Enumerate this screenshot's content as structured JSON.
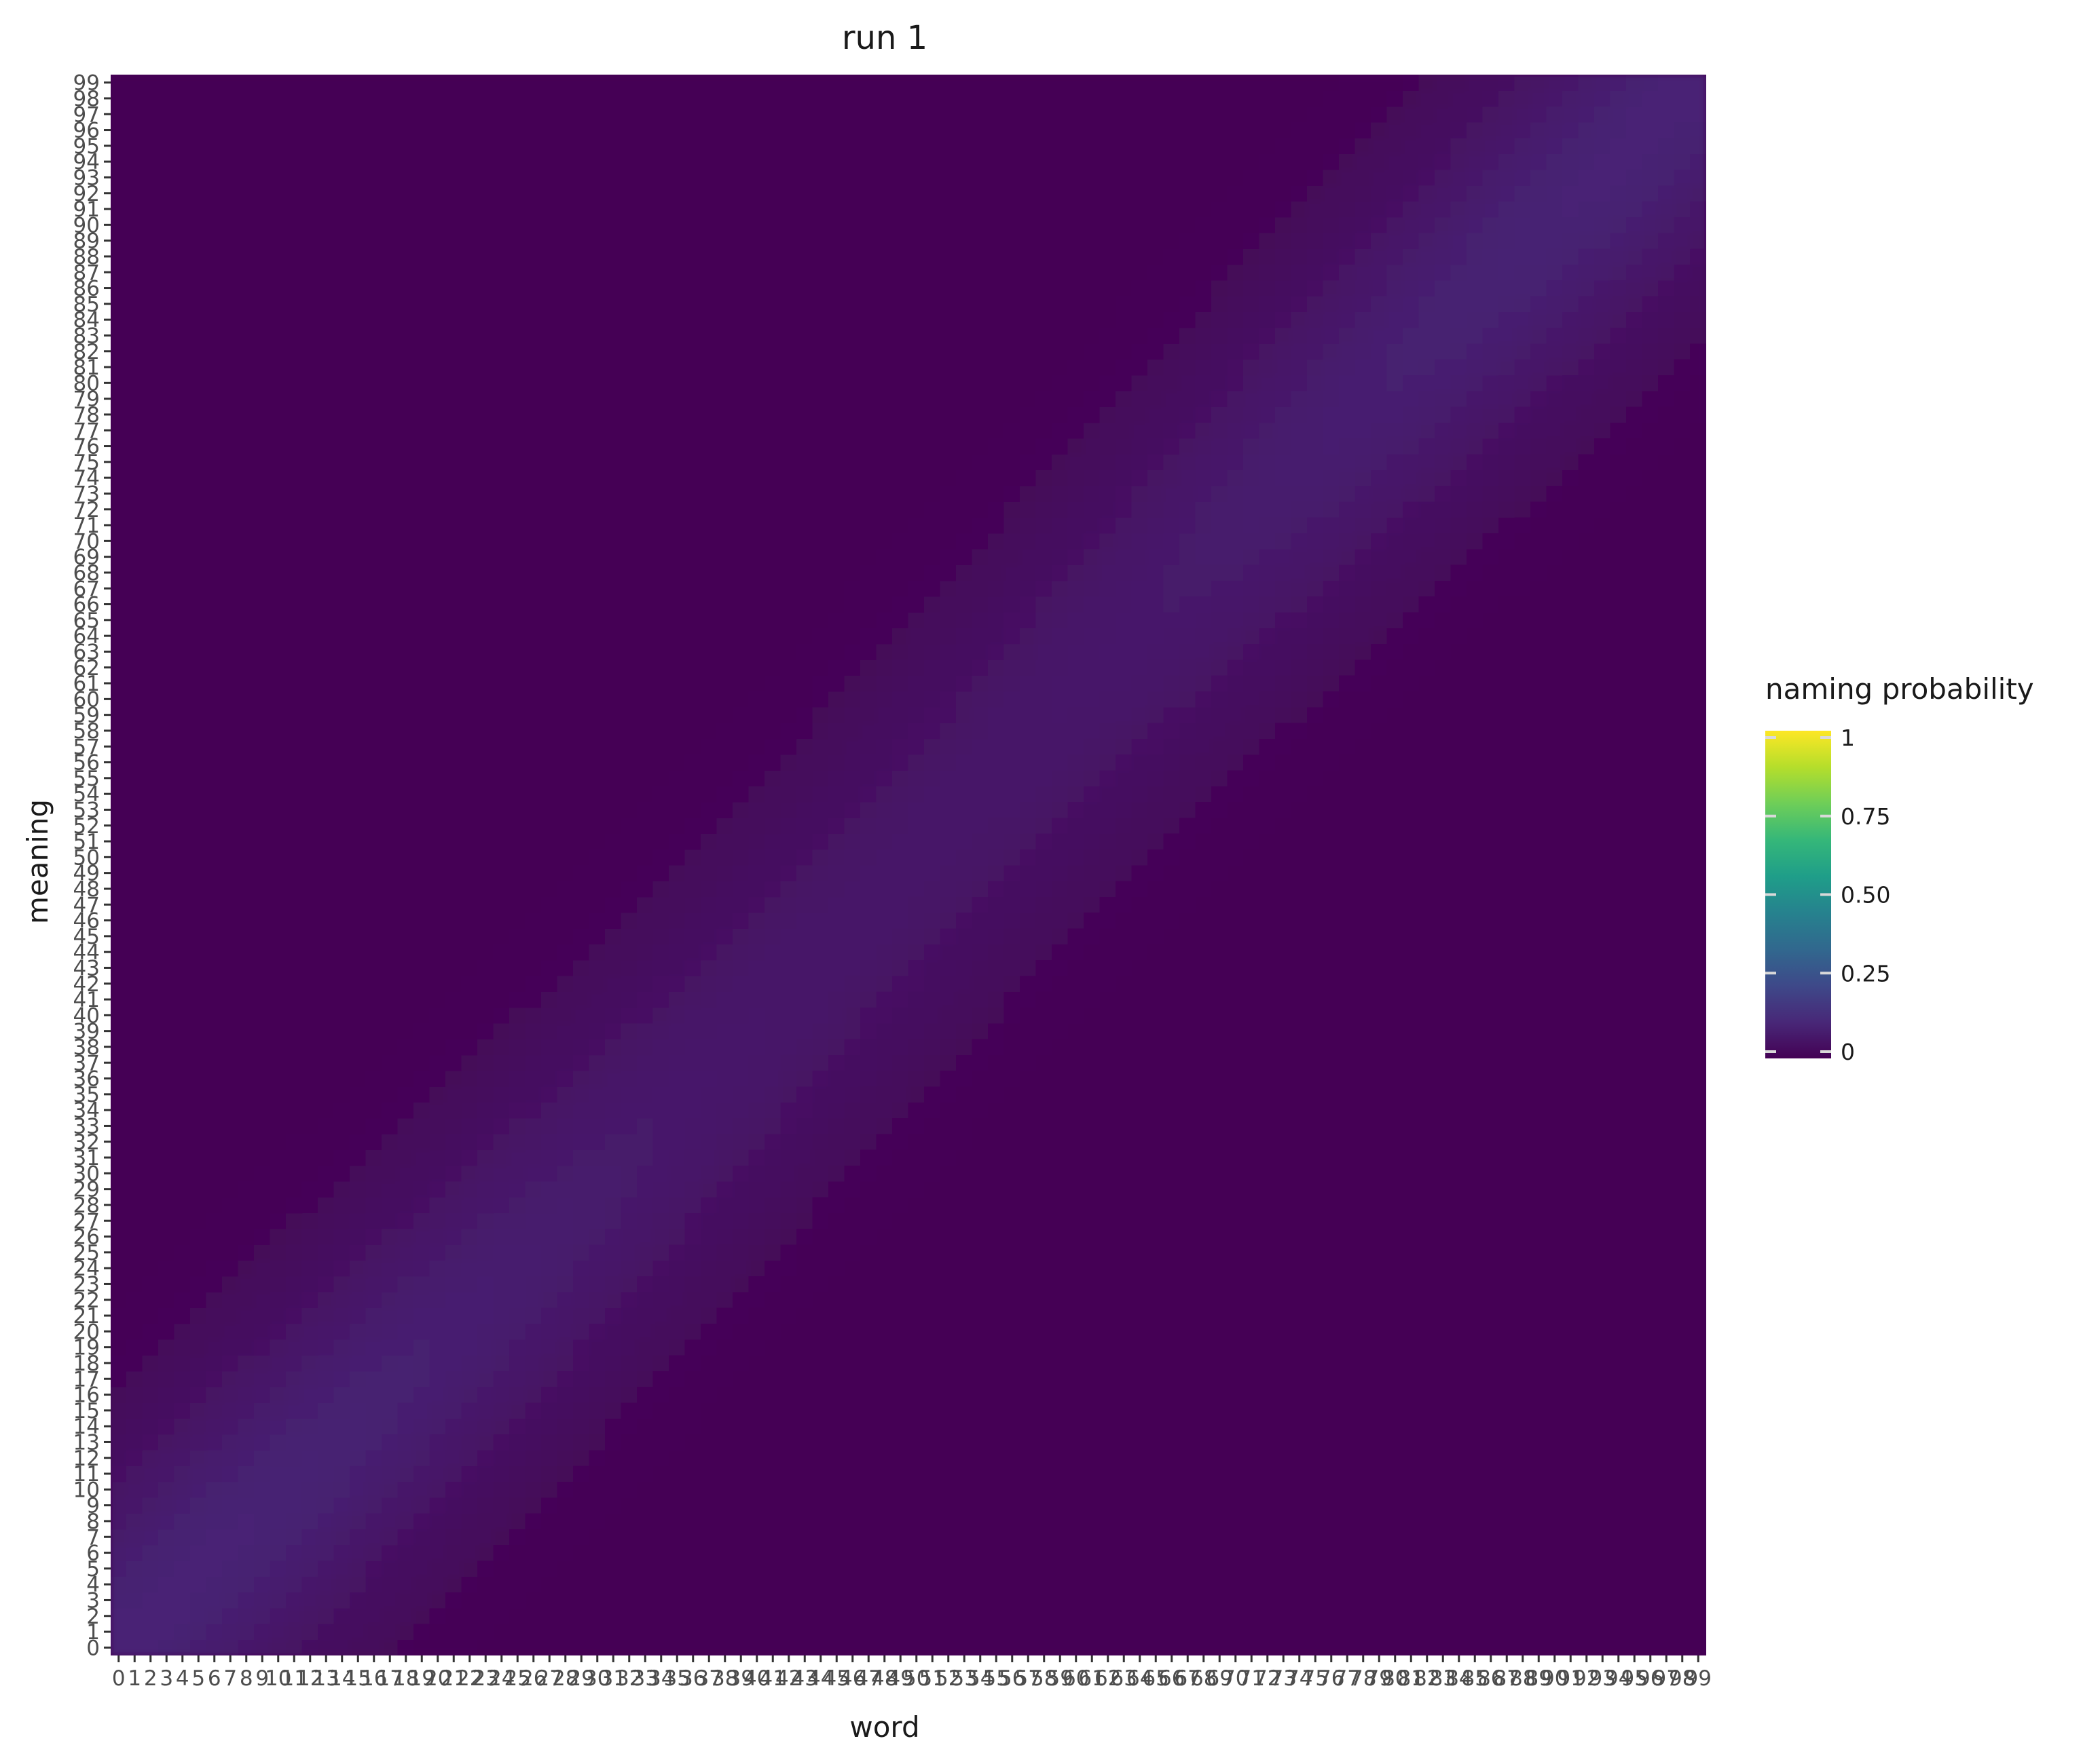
{
  "chart_data": {
    "type": "heatmap",
    "title": "run 1",
    "xlabel": "word",
    "ylabel": "meaning",
    "x_categories": [
      "0",
      "1",
      "2",
      "3",
      "4",
      "5",
      "6",
      "7",
      "8",
      "9",
      "10",
      "11",
      "12",
      "13",
      "14",
      "15",
      "16",
      "17",
      "18",
      "19",
      "20",
      "21",
      "22",
      "23",
      "24",
      "25",
      "26",
      "27",
      "28",
      "29",
      "30",
      "31",
      "32",
      "33",
      "34",
      "35",
      "36",
      "37",
      "38",
      "39",
      "40",
      "41",
      "42",
      "43",
      "44",
      "45",
      "46",
      "47",
      "48",
      "49",
      "50",
      "51",
      "52",
      "53",
      "54",
      "55",
      "56",
      "57",
      "58",
      "59",
      "60",
      "61",
      "62",
      "63",
      "64",
      "65",
      "66",
      "67",
      "68",
      "69",
      "70",
      "71",
      "72",
      "73",
      "74",
      "75",
      "76",
      "77",
      "78",
      "79",
      "80",
      "81",
      "82",
      "83",
      "84",
      "85",
      "86",
      "87",
      "88",
      "89",
      "90",
      "91",
      "92",
      "93",
      "94",
      "95",
      "96",
      "97",
      "98",
      "99"
    ],
    "y_categories": [
      "0",
      "1",
      "2",
      "3",
      "4",
      "5",
      "6",
      "7",
      "8",
      "9",
      "10",
      "11",
      "12",
      "13",
      "14",
      "15",
      "16",
      "17",
      "18",
      "19",
      "20",
      "21",
      "22",
      "23",
      "24",
      "25",
      "26",
      "27",
      "28",
      "29",
      "30",
      "31",
      "32",
      "33",
      "34",
      "35",
      "36",
      "37",
      "38",
      "39",
      "40",
      "41",
      "42",
      "43",
      "44",
      "45",
      "46",
      "47",
      "48",
      "49",
      "50",
      "51",
      "52",
      "53",
      "54",
      "55",
      "56",
      "57",
      "58",
      "59",
      "60",
      "61",
      "62",
      "63",
      "64",
      "65",
      "66",
      "67",
      "68",
      "69",
      "70",
      "71",
      "72",
      "73",
      "74",
      "75",
      "76",
      "77",
      "78",
      "79",
      "80",
      "81",
      "82",
      "83",
      "84",
      "85",
      "86",
      "87",
      "88",
      "89",
      "90",
      "91",
      "92",
      "93",
      "94",
      "95",
      "96",
      "97",
      "98",
      "99"
    ],
    "value_model": {
      "pattern": "diagonal band: each meaning is named mostly by nearby words",
      "peak_min": 0.06,
      "peak_max": 0.1,
      "bandwidth": 9
    },
    "colorbar": {
      "title": "naming probability",
      "range": [
        0,
        1
      ],
      "ticks": [
        0,
        0.25,
        0.5,
        0.75,
        1
      ],
      "tick_labels": [
        "0",
        "0.25",
        "0.50",
        "0.75",
        "1"
      ],
      "colormap": "viridis",
      "stops": [
        "#440154",
        "#482878",
        "#3e4989",
        "#31688e",
        "#26828e",
        "#1f9e89",
        "#35b779",
        "#6ece58",
        "#b5de2b",
        "#fde725"
      ],
      "placement": "right"
    },
    "grid": false
  }
}
